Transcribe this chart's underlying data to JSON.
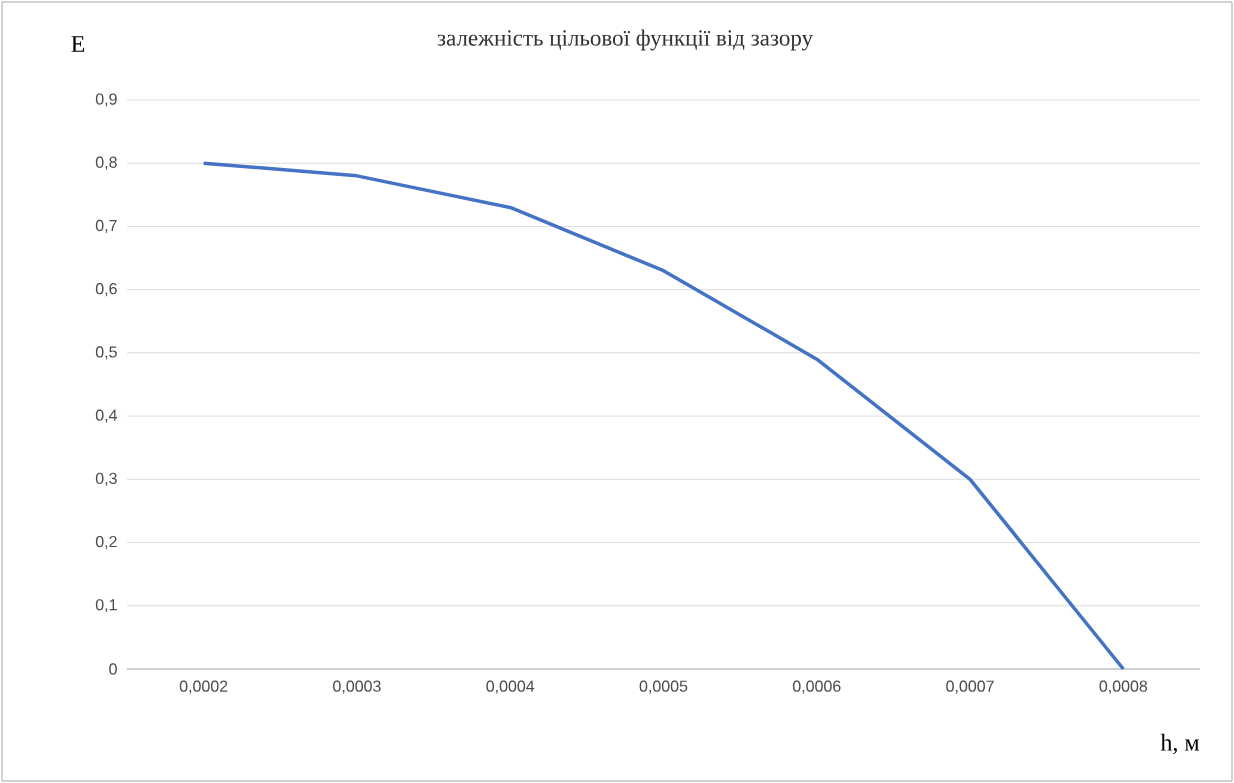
{
  "chart_data": {
    "type": "line",
    "title": "залежність цільової функції від зазору",
    "xlabel": "h, м",
    "ylabel": "E",
    "categories": [
      "0,0002",
      "0,0003",
      "0,0004",
      "0,0005",
      "0,0006",
      "0,0007",
      "0,0008"
    ],
    "series": [
      {
        "color": "#4472c4",
        "values": [
          0.8,
          0.78,
          0.73,
          0.63,
          0.49,
          0.3,
          0
        ]
      }
    ],
    "ylim": [
      0,
      0.9
    ],
    "yticks": [
      0,
      {
        "value": 0.1,
        "label": "0,1"
      },
      {
        "value": 0.2,
        "label": "0,2"
      },
      {
        "value": 0.3,
        "label": "0,3"
      },
      {
        "value": 0.4,
        "label": "0,4"
      },
      {
        "value": 0.5,
        "label": "0,5"
      },
      {
        "value": 0.6,
        "label": "0,6"
      },
      {
        "value": 0.7,
        "label": "0,7"
      },
      {
        "value": 0.8,
        "label": "0,8"
      },
      {
        "value": 0.9,
        "label": "0,9"
      }
    ],
    "grid": "y",
    "legend": false,
    "marker": "none",
    "line_style": "solid"
  }
}
